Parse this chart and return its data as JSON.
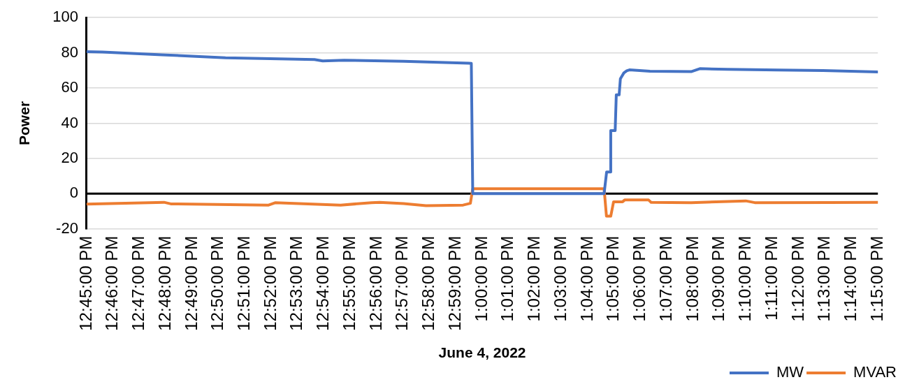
{
  "chart_data": {
    "type": "line",
    "xlabel": "June 4, 2022",
    "ylabel": "Power",
    "xlim": [
      12.75,
      13.25
    ],
    "xticks": [
      {
        "value": 12.75,
        "label": "12:45:00 PM"
      },
      {
        "value": 12.7667,
        "label": "12:46:00 PM"
      },
      {
        "value": 12.7833,
        "label": "12:47:00 PM"
      },
      {
        "value": 12.8,
        "label": "12:48:00 PM"
      },
      {
        "value": 12.8167,
        "label": "12:49:00 PM"
      },
      {
        "value": 12.8333,
        "label": "12:50:00 PM"
      },
      {
        "value": 12.85,
        "label": "12:51:00 PM"
      },
      {
        "value": 12.8667,
        "label": "12:52:00 PM"
      },
      {
        "value": 12.8833,
        "label": "12:53:00 PM"
      },
      {
        "value": 12.9,
        "label": "12:54:00 PM"
      },
      {
        "value": 12.9167,
        "label": "12:55:00 PM"
      },
      {
        "value": 12.9333,
        "label": "12:56:00 PM"
      },
      {
        "value": 12.95,
        "label": "12:57:00 PM"
      },
      {
        "value": 12.9667,
        "label": "12:58:00 PM"
      },
      {
        "value": 12.9833,
        "label": "12:59:00 PM"
      },
      {
        "value": 13.0,
        "label": "1:00:00 PM"
      },
      {
        "value": 13.0167,
        "label": "1:01:00 PM"
      },
      {
        "value": 13.0333,
        "label": "1:02:00 PM"
      },
      {
        "value": 13.05,
        "label": "1:03:00 PM"
      },
      {
        "value": 13.0667,
        "label": "1:04:00 PM"
      },
      {
        "value": 13.0833,
        "label": "1:05:00 PM"
      },
      {
        "value": 13.1,
        "label": "1:06:00 PM"
      },
      {
        "value": 13.1167,
        "label": "1:07:00 PM"
      },
      {
        "value": 13.1333,
        "label": "1:08:00 PM"
      },
      {
        "value": 13.15,
        "label": "1:09:00 PM"
      },
      {
        "value": 13.1667,
        "label": "1:10:00 PM"
      },
      {
        "value": 13.1833,
        "label": "1:11:00 PM"
      },
      {
        "value": 13.2,
        "label": "1:12:00 PM"
      },
      {
        "value": 13.2167,
        "label": "1:13:00 PM"
      },
      {
        "value": 13.2333,
        "label": "1:14:00 PM"
      },
      {
        "value": 13.25,
        "label": "1:15:00 PM"
      }
    ],
    "ylim": [
      -20,
      100
    ],
    "yticks": [
      -20,
      0,
      20,
      40,
      60,
      80,
      100
    ],
    "grid": "y",
    "legend": "bottom right",
    "marker": "none",
    "line_style": "solid",
    "ref_lines": [
      {
        "axis": "y",
        "value": 0,
        "color": "#000000"
      }
    ],
    "series": [
      {
        "name": "MW",
        "color": "#4472c4",
        "x": [
          12.75,
          12.76,
          12.7976,
          12.8378,
          12.894,
          12.8992,
          12.9127,
          12.9503,
          12.9914,
          12.9931,
          12.994,
          13.077,
          13.0786,
          13.0808,
          13.0812,
          13.084,
          13.0847,
          13.0865,
          13.0873,
          13.0895,
          13.0913,
          13.093,
          13.106,
          13.132,
          13.1375,
          13.1549,
          13.1869,
          13.2154,
          13.25
        ],
        "values": [
          80.6,
          80.4,
          78.9,
          77.2,
          76.2,
          75.4,
          75.8,
          75.2,
          74.1,
          74.0,
          0,
          0,
          12.3,
          12.3,
          35.8,
          35.8,
          56.1,
          56.1,
          65.3,
          68.6,
          69.8,
          70.3,
          69.5,
          69.3,
          71.0,
          70.6,
          70.2,
          69.9,
          69.1
        ]
      },
      {
        "name": "MVAR",
        "color": "#ed7d31",
        "x": [
          12.75,
          12.7989,
          12.8032,
          12.865,
          12.8694,
          12.9105,
          12.93,
          12.9352,
          12.9503,
          12.9645,
          12.9879,
          12.9925,
          12.994,
          13.077,
          13.0785,
          13.0812,
          13.083,
          13.0887,
          13.09,
          13.1051,
          13.1067,
          13.132,
          13.1665,
          13.1722,
          13.2185,
          13.25
        ],
        "values": [
          -5.9,
          -4.9,
          -5.8,
          -6.5,
          -5.1,
          -6.5,
          -5.1,
          -4.9,
          -5.6,
          -6.8,
          -6.5,
          -5.5,
          2.8,
          2.8,
          -12.8,
          -12.8,
          -4.6,
          -4.6,
          -3.6,
          -3.6,
          -4.9,
          -5.1,
          -4.1,
          -5.1,
          -5.0,
          -4.9
        ]
      }
    ]
  }
}
